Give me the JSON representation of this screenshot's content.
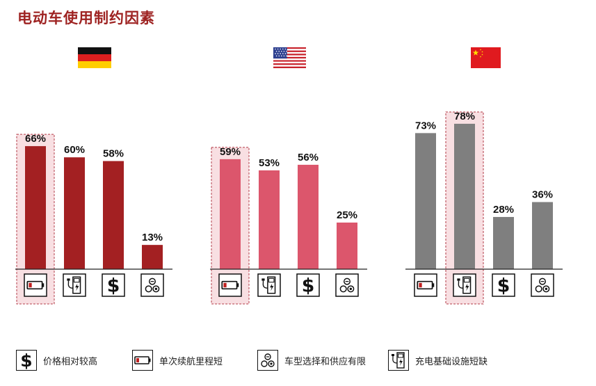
{
  "title": "电动车使用制约因素",
  "colors": {
    "germany": "#a32022",
    "usa": "#dc566c",
    "china": "#7f7f7f",
    "highlight_fill": "#f8dfe2",
    "highlight_border": "#b23a46",
    "baseline": "#222222"
  },
  "icons": {
    "price": "dollar-icon",
    "range": "battery-low-icon",
    "models": "model-choice-icon",
    "charging": "charging-station-icon"
  },
  "chart_data": [
    {
      "type": "bar",
      "group": "germany",
      "flag": "germany-flag",
      "categories": [
        "range",
        "charging",
        "price",
        "models"
      ],
      "values": [
        66,
        60,
        58,
        13
      ],
      "labels": [
        "66%",
        "60%",
        "58%",
        "13%"
      ],
      "unit": "%",
      "highlight": "range",
      "ylim": [
        0,
        100
      ]
    },
    {
      "type": "bar",
      "group": "usa",
      "flag": "usa-flag",
      "categories": [
        "range",
        "charging",
        "price",
        "models"
      ],
      "values": [
        59,
        53,
        56,
        25
      ],
      "labels": [
        "59%",
        "53%",
        "56%",
        "25%"
      ],
      "unit": "%",
      "highlight": "range",
      "ylim": [
        0,
        100
      ]
    },
    {
      "type": "bar",
      "group": "china",
      "flag": "china-flag",
      "categories": [
        "range",
        "charging",
        "price",
        "models"
      ],
      "values": [
        73,
        78,
        28,
        36
      ],
      "labels": [
        "73%",
        "78%",
        "28%",
        "36%"
      ],
      "unit": "%",
      "highlight": "charging",
      "ylim": [
        0,
        100
      ]
    }
  ],
  "legend": [
    {
      "key": "price",
      "icon": "dollar-icon",
      "label": "价格相对较高"
    },
    {
      "key": "range",
      "icon": "battery-low-icon",
      "label": "单次续航里程短"
    },
    {
      "key": "models",
      "icon": "model-choice-icon",
      "label": "车型选择和供应有限"
    },
    {
      "key": "charging",
      "icon": "charging-station-icon",
      "label": "充电基础设施短缺"
    }
  ]
}
